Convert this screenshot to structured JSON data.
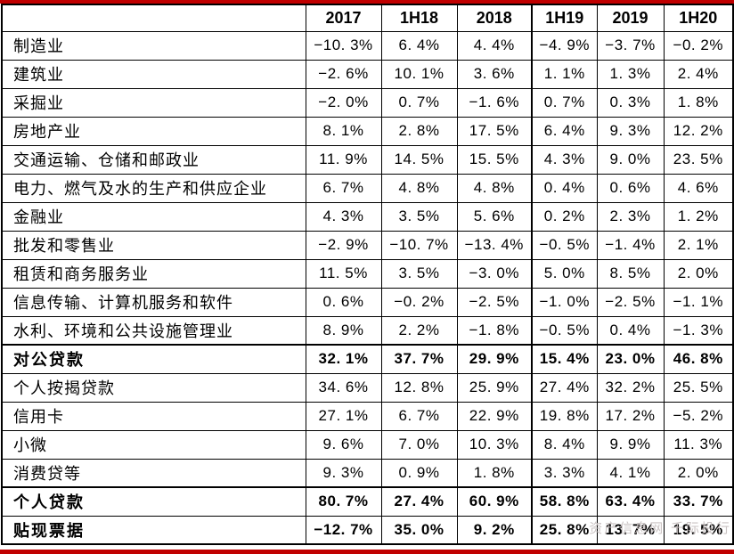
{
  "chart_data": {
    "type": "table",
    "title": "",
    "corner_label": "",
    "columns": [
      "2017",
      "1H18",
      "2018",
      "1H19",
      "2019",
      "1H20"
    ],
    "rows": [
      {
        "label": "制造业",
        "bold": false,
        "thick_top": false,
        "values": [
          "−10. 3%",
          "6. 4%",
          "4. 4%",
          "−4. 9%",
          "−3. 7%",
          "−0. 2%"
        ]
      },
      {
        "label": "建筑业",
        "bold": false,
        "thick_top": false,
        "values": [
          "−2. 6%",
          "10. 1%",
          "3. 6%",
          "1. 1%",
          "1. 3%",
          "2. 4%"
        ]
      },
      {
        "label": "采掘业",
        "bold": false,
        "thick_top": false,
        "values": [
          "−2. 0%",
          "0. 7%",
          "−1. 6%",
          "0. 7%",
          "0. 3%",
          "1. 8%"
        ]
      },
      {
        "label": "房地产业",
        "bold": false,
        "thick_top": false,
        "values": [
          "8. 1%",
          "2. 8%",
          "17. 5%",
          "6. 4%",
          "9. 3%",
          "12. 2%"
        ]
      },
      {
        "label": "交通运输、仓储和邮政业",
        "bold": false,
        "thick_top": false,
        "values": [
          "11. 9%",
          "14. 5%",
          "15. 5%",
          "4. 3%",
          "9. 0%",
          "23. 5%"
        ]
      },
      {
        "label": "电力、燃气及水的生产和供应企业",
        "bold": false,
        "thick_top": false,
        "values": [
          "6. 7%",
          "4. 8%",
          "4. 8%",
          "0. 4%",
          "0. 6%",
          "4. 6%"
        ]
      },
      {
        "label": "金融业",
        "bold": false,
        "thick_top": false,
        "values": [
          "4. 3%",
          "3. 5%",
          "5. 6%",
          "0. 2%",
          "2. 3%",
          "1. 2%"
        ]
      },
      {
        "label": "批发和零售业",
        "bold": false,
        "thick_top": false,
        "values": [
          "−2. 9%",
          "−10. 7%",
          "−13. 4%",
          "−0. 5%",
          "−1. 4%",
          "2. 1%"
        ]
      },
      {
        "label": "租赁和商务服务业",
        "bold": false,
        "thick_top": false,
        "values": [
          "11. 5%",
          "3. 5%",
          "−3. 0%",
          "5. 0%",
          "8. 5%",
          "2. 0%"
        ]
      },
      {
        "label": "信息传输、计算机服务和软件",
        "bold": false,
        "thick_top": false,
        "values": [
          "0. 6%",
          "−0. 2%",
          "−2. 5%",
          "−1. 0%",
          "−2. 5%",
          "−1. 1%"
        ]
      },
      {
        "label": "水利、环境和公共设施管理业",
        "bold": false,
        "thick_top": false,
        "values": [
          "8. 9%",
          "2. 2%",
          "−1. 8%",
          "−0. 5%",
          "0. 4%",
          "−1. 3%"
        ]
      },
      {
        "label": "对公贷款",
        "bold": true,
        "thick_top": true,
        "values": [
          "32. 1%",
          "37. 7%",
          "29. 9%",
          "15. 4%",
          "23. 0%",
          "46. 8%"
        ]
      },
      {
        "label": "个人按揭贷款",
        "bold": false,
        "thick_top": false,
        "values": [
          "34. 6%",
          "12. 8%",
          "25. 9%",
          "27. 4%",
          "32. 2%",
          "25. 5%"
        ]
      },
      {
        "label": "信用卡",
        "bold": false,
        "thick_top": false,
        "values": [
          "27. 1%",
          "6. 7%",
          "22. 9%",
          "19. 8%",
          "17. 2%",
          "−5. 2%"
        ]
      },
      {
        "label": "小微",
        "bold": false,
        "thick_top": false,
        "values": [
          "9. 6%",
          "7. 0%",
          "10. 3%",
          "8. 4%",
          "9. 9%",
          "11. 3%"
        ]
      },
      {
        "label": "消费贷等",
        "bold": false,
        "thick_top": false,
        "values": [
          "9. 3%",
          "0. 9%",
          "1. 8%",
          "3. 3%",
          "4. 1%",
          "2. 0%"
        ]
      },
      {
        "label": "个人贷款",
        "bold": true,
        "thick_top": true,
        "values": [
          "80. 7%",
          "27. 4%",
          "60. 9%",
          "58. 8%",
          "63. 4%",
          "33. 7%"
        ]
      },
      {
        "label": "贴现票据",
        "bold": true,
        "thick_top": false,
        "values": [
          "−12. 7%",
          "35. 0%",
          "9. 2%",
          "25. 8%",
          "13. 7%",
          "19. 5%"
        ]
      }
    ]
  },
  "watermark": {
    "text": "资产信息网 千际投行"
  },
  "colors": {
    "accent_red": "#c00000",
    "border": "#000000",
    "text": "#000000",
    "background": "#ffffff",
    "watermark_gray": "#c4bcbc"
  }
}
